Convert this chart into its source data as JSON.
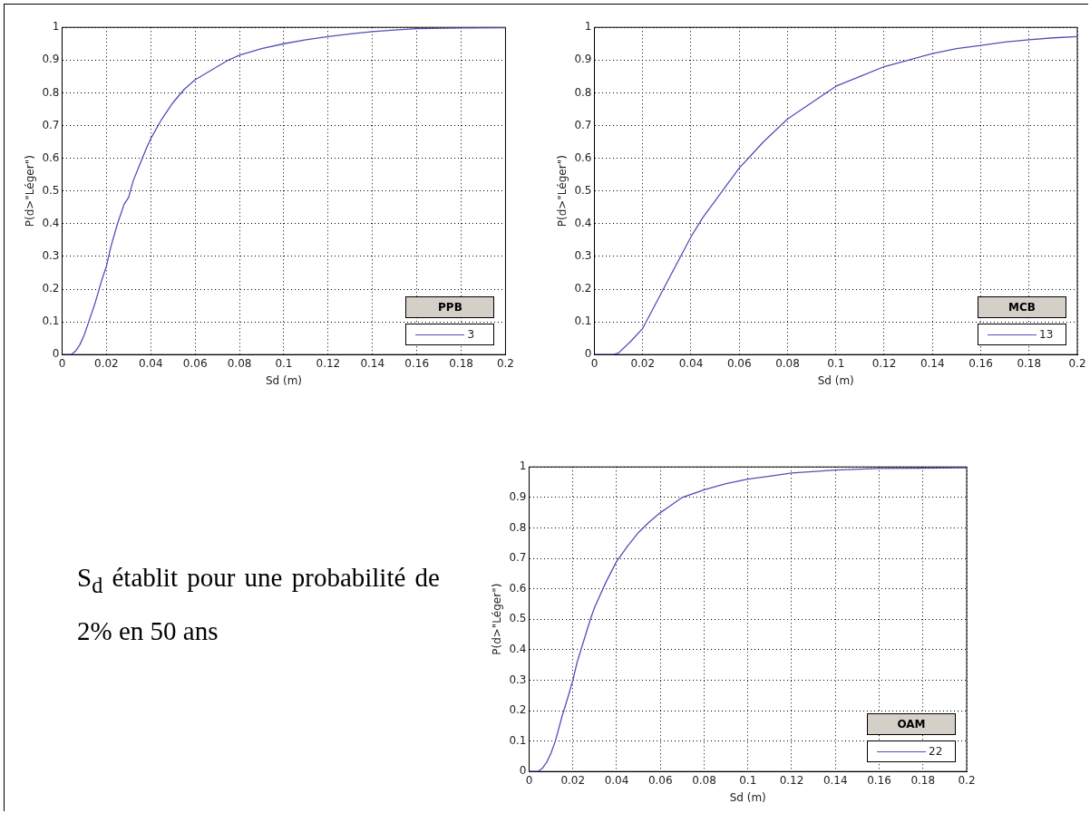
{
  "chart_data": [
    {
      "type": "line",
      "xlabel": "Sd (m)",
      "ylabel": "P(d>\"Léger\")",
      "legend_title": "PPB",
      "legend": "bottom right",
      "grid": true,
      "marker": "none",
      "line_style": "solid",
      "xlim": [
        0,
        0.2
      ],
      "ylim": [
        0,
        1
      ],
      "xticks": [
        0,
        0.02,
        0.04,
        0.06,
        0.08,
        0.1,
        0.12,
        0.14,
        0.16,
        0.18,
        0.2
      ],
      "yticks": [
        0,
        0.1,
        0.2,
        0.3,
        0.4,
        0.5,
        0.6,
        0.7,
        0.8,
        0.9,
        1
      ],
      "x": [
        0,
        0.004,
        0.006,
        0.008,
        0.01,
        0.012,
        0.015,
        0.018,
        0.02,
        0.022,
        0.025,
        0.028,
        0.03,
        0.032,
        0.035,
        0.038,
        0.04,
        0.045,
        0.05,
        0.055,
        0.06,
        0.065,
        0.07,
        0.075,
        0.08,
        0.09,
        0.1,
        0.11,
        0.12,
        0.13,
        0.14,
        0.15,
        0.16,
        0.18,
        0.2
      ],
      "series": [
        {
          "name": "3",
          "color": "#5050b8",
          "values": [
            0,
            0,
            0.01,
            0.03,
            0.06,
            0.1,
            0.16,
            0.23,
            0.27,
            0.33,
            0.4,
            0.46,
            0.48,
            0.53,
            0.58,
            0.63,
            0.66,
            0.72,
            0.77,
            0.81,
            0.84,
            0.86,
            0.88,
            0.9,
            0.915,
            0.935,
            0.95,
            0.962,
            0.972,
            0.98,
            0.987,
            0.992,
            0.996,
            0.998,
            0.999
          ]
        }
      ]
    },
    {
      "type": "line",
      "xlabel": "Sd (m)",
      "ylabel": "P(d>\"Léger\")",
      "legend_title": "MCB",
      "legend": "bottom right",
      "grid": true,
      "marker": "none",
      "line_style": "solid",
      "xlim": [
        0,
        0.2
      ],
      "ylim": [
        0,
        1
      ],
      "xticks": [
        0,
        0.02,
        0.04,
        0.06,
        0.08,
        0.1,
        0.12,
        0.14,
        0.16,
        0.18,
        0.2
      ],
      "yticks": [
        0,
        0.1,
        0.2,
        0.3,
        0.4,
        0.5,
        0.6,
        0.7,
        0.8,
        0.9,
        1
      ],
      "x": [
        0,
        0.008,
        0.01,
        0.015,
        0.02,
        0.025,
        0.03,
        0.035,
        0.04,
        0.045,
        0.05,
        0.055,
        0.06,
        0.065,
        0.07,
        0.08,
        0.09,
        0.1,
        0.11,
        0.12,
        0.13,
        0.14,
        0.15,
        0.16,
        0.17,
        0.18,
        0.19,
        0.2
      ],
      "series": [
        {
          "name": "13",
          "color": "#5050b8",
          "values": [
            0,
            0,
            0.005,
            0.04,
            0.08,
            0.15,
            0.22,
            0.29,
            0.36,
            0.42,
            0.47,
            0.52,
            0.57,
            0.61,
            0.65,
            0.72,
            0.77,
            0.82,
            0.85,
            0.88,
            0.9,
            0.92,
            0.935,
            0.945,
            0.955,
            0.962,
            0.968,
            0.972
          ]
        }
      ]
    },
    {
      "type": "line",
      "xlabel": "Sd (m)",
      "ylabel": "P(d>\"Léger\")",
      "legend_title": "OAM",
      "legend": "bottom right",
      "grid": true,
      "marker": "none",
      "line_style": "solid",
      "xlim": [
        0,
        0.2
      ],
      "ylim": [
        0,
        1
      ],
      "xticks": [
        0,
        0.02,
        0.04,
        0.06,
        0.08,
        0.1,
        0.12,
        0.14,
        0.16,
        0.18,
        0.2
      ],
      "yticks": [
        0,
        0.1,
        0.2,
        0.3,
        0.4,
        0.5,
        0.6,
        0.7,
        0.8,
        0.9,
        1
      ],
      "x": [
        0,
        0.004,
        0.006,
        0.008,
        0.01,
        0.012,
        0.015,
        0.018,
        0.02,
        0.022,
        0.025,
        0.028,
        0.03,
        0.035,
        0.04,
        0.045,
        0.05,
        0.055,
        0.06,
        0.065,
        0.07,
        0.08,
        0.09,
        0.1,
        0.11,
        0.12,
        0.14,
        0.16,
        0.2
      ],
      "series": [
        {
          "name": "22",
          "color": "#5050b8",
          "values": [
            0,
            0,
            0.01,
            0.03,
            0.06,
            0.1,
            0.18,
            0.25,
            0.3,
            0.36,
            0.43,
            0.5,
            0.54,
            0.62,
            0.69,
            0.74,
            0.785,
            0.82,
            0.85,
            0.875,
            0.9,
            0.925,
            0.945,
            0.96,
            0.97,
            0.98,
            0.99,
            0.995,
            0.997
          ]
        }
      ]
    },
    {
      "type": "other",
      "annotations": [
        "S$_{d}$ établit pour une probabilité de 2% en 50 ans"
      ]
    }
  ]
}
